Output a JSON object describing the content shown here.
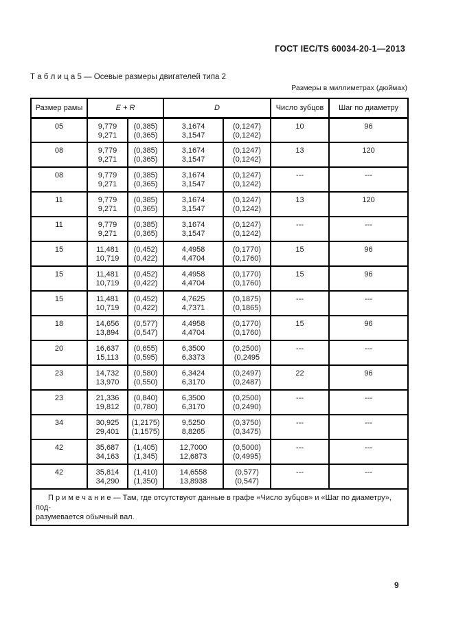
{
  "doc_header": "ГОСТ IEC/TS 60034-20-1—2013",
  "caption": "Т а б л и ц а  5 — Осевые размеры двигателей типа 2",
  "units_note": "Размеры в миллиметрах (дюймах)",
  "table": {
    "headers": {
      "frame": "Размер рамы",
      "er": "E + R",
      "d": "D",
      "teeth": "Число зубцов",
      "pitch": "Шаг по диаметру"
    },
    "rows": [
      [
        "05",
        "9,779\n9,271",
        "(0,385)\n(0,365)",
        "3,1674\n3,1547",
        "(0,1247)\n(0,1242)",
        "10",
        "96"
      ],
      [
        "08",
        "9,779\n9,271",
        "(0,385)\n(0,365)",
        "3,1674\n3,1547",
        "(0,1247)\n(0,1242)",
        "13",
        "120"
      ],
      [
        "08",
        "9,779\n9,271",
        "(0,385)\n(0,365)",
        "3,1674\n3,1547",
        "(0,1247)\n(0,1242)",
        "---",
        "---"
      ],
      [
        "11",
        "9,779\n9,271",
        "(0,385)\n(0,365)",
        "3,1674\n3,1547",
        "(0,1247)\n(0,1242)",
        "13",
        "120"
      ],
      [
        "11",
        "9,779\n9,271",
        "(0,385)\n(0,365)",
        "3,1674\n3,1547",
        "(0,1247)\n(0,1242)",
        "---",
        "---"
      ],
      [
        "15",
        "11,481\n10,719",
        "(0,452)\n(0,422)",
        "4,4958\n4,4704",
        "(0,1770)\n(0,1760)",
        "15",
        "96"
      ],
      [
        "15",
        "11,481\n10,719",
        "(0,452)\n(0,422)",
        "4,4958\n4,4704",
        "(0,1770)\n(0,1760)",
        "15",
        "96"
      ],
      [
        "15",
        "11,481\n10,719",
        "(0,452)\n(0,422)",
        "4,7625\n4,7371",
        "(0,1875)\n(0,1865)",
        "---",
        "---"
      ],
      [
        "18",
        "14,656\n13,894",
        "(0,577)\n(0,547)",
        "4,4958\n4,4704",
        "(0,1770)\n(0,1760)",
        "15",
        "96"
      ],
      [
        "20",
        "16,637\n15,113",
        "(0,655)\n(0,595)",
        "6,3500\n6,3373",
        "(0,2500)\n(0,2495",
        "---",
        "---"
      ],
      [
        "23",
        "14,732\n13,970",
        "(0,580)\n(0,550)",
        "6,3424\n6,3170",
        "(0,2497)\n(0,2487)",
        "22",
        "96"
      ],
      [
        "23",
        "21,336\n19,812",
        "(0,840)\n(0,780)",
        "6,3500\n6,3170",
        "(0,2500)\n(0,2490)",
        "---",
        "---"
      ],
      [
        "34",
        "30,925\n29,401",
        "(1,2175)\n(1,1575)",
        "9,5250\n8,8265",
        "(0,3750)\n(0,3475)",
        "---",
        "---"
      ],
      [
        "42",
        "35,687\n34,163",
        "(1,405)\n(1,345)",
        "12,7000\n12,6873",
        "(0,5000)\n(0,4995)",
        "---",
        "---"
      ],
      [
        "42",
        "35,814\n34,290",
        "(1,410)\n(1,350)",
        "14,6558\n13,8938",
        "(0,577)\n(0,547)",
        "---",
        "---"
      ]
    ],
    "note": "П р и м е ч а н и е  — Там, где отсутствуют данные в графе «Число зубцов» и «Шаг по диаметру», под-\nразумевается обычный вал."
  },
  "page": {
    "number": "9"
  }
}
